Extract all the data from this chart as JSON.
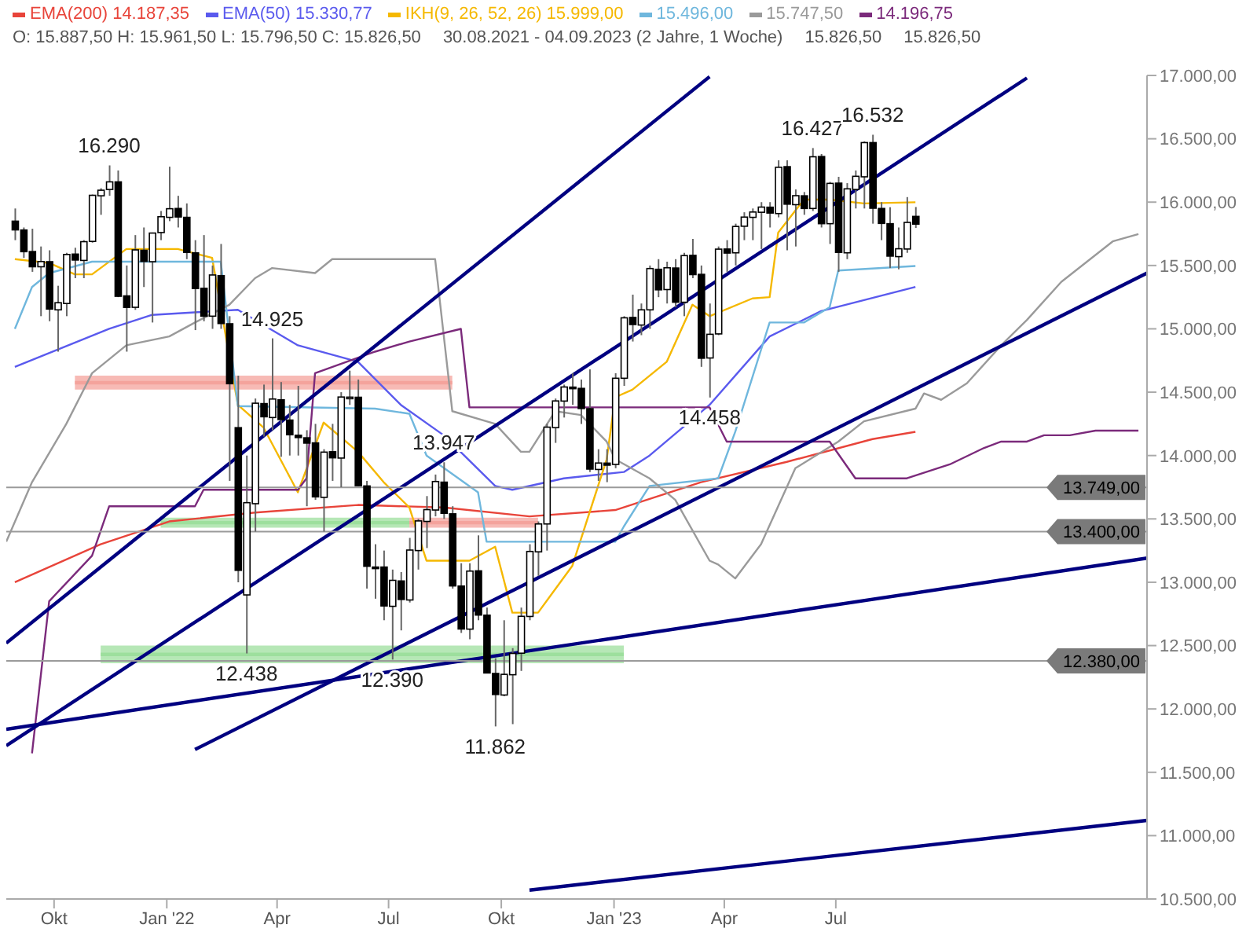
{
  "chart_data": {
    "type": "candlestick",
    "annotations": [
      "O: 15.887,50  H: 15.961,50  L: 15.796,50  C: 15.826,50",
      "30.08.2021 - 04.09.2023  (2 Jahre, 1 Woche)",
      "15.826,50",
      {
        "text": "16.290",
        "x": "2021-11-15",
        "y": 16290
      },
      {
        "text": "14.925",
        "x": "2022-03-28",
        "y": 14925
      },
      {
        "text": "12.438",
        "x": "2022-03-07",
        "y": 12438
      },
      {
        "text": "12.390",
        "x": "2022-07-04",
        "y": 12390
      },
      {
        "text": "13.947",
        "x": "2022-08-15",
        "y": 13947
      },
      {
        "text": "11.862",
        "x": "2022-09-26",
        "y": 11862
      },
      {
        "text": "14.458",
        "x": "2023-03-20",
        "y": 14458
      },
      {
        "text": "16.427",
        "x": "2023-06-12",
        "y": 16427
      },
      {
        "text": "16.532",
        "x": "2023-07-31",
        "y": 16532
      },
      "15.826,50"
    ],
    "legend": "top left",
    "x": [
      "2021-08-30",
      "2021-09-06",
      "2021-09-13",
      "2021-09-20",
      "2021-09-27",
      "2021-10-04",
      "2021-10-11",
      "2021-10-18",
      "2021-10-25",
      "2021-11-01",
      "2021-11-08",
      "2021-11-15",
      "2021-11-22",
      "2021-11-29",
      "2021-12-06",
      "2021-12-13",
      "2021-12-20",
      "2021-12-27",
      "2022-01-03",
      "2022-01-10",
      "2022-01-17",
      "2022-01-24",
      "2022-01-31",
      "2022-02-07",
      "2022-02-14",
      "2022-02-21",
      "2022-02-28",
      "2022-03-07",
      "2022-03-14",
      "2022-03-21",
      "2022-03-28",
      "2022-04-04",
      "2022-04-11",
      "2022-04-18",
      "2022-04-25",
      "2022-05-02",
      "2022-05-09",
      "2022-05-16",
      "2022-05-23",
      "2022-05-30",
      "2022-06-06",
      "2022-06-13",
      "2022-06-20",
      "2022-06-27",
      "2022-07-04",
      "2022-07-11",
      "2022-07-18",
      "2022-07-25",
      "2022-08-01",
      "2022-08-08",
      "2022-08-15",
      "2022-08-22",
      "2022-08-29",
      "2022-09-05",
      "2022-09-12",
      "2022-09-19",
      "2022-09-26",
      "2022-10-03",
      "2022-10-10",
      "2022-10-17",
      "2022-10-24",
      "2022-10-31",
      "2022-11-07",
      "2022-11-14",
      "2022-11-21",
      "2022-11-28",
      "2022-12-05",
      "2022-12-12",
      "2022-12-19",
      "2022-12-26",
      "2023-01-02",
      "2023-01-09",
      "2023-01-16",
      "2023-01-23",
      "2023-01-30",
      "2023-02-06",
      "2023-02-13",
      "2023-02-20",
      "2023-02-27",
      "2023-03-06",
      "2023-03-13",
      "2023-03-20",
      "2023-03-27",
      "2023-04-03",
      "2023-04-10",
      "2023-04-17",
      "2023-04-24",
      "2023-05-01",
      "2023-05-08",
      "2023-05-15",
      "2023-05-22",
      "2023-05-29",
      "2023-06-05",
      "2023-06-12",
      "2023-06-19",
      "2023-06-26",
      "2023-07-03",
      "2023-07-10",
      "2023-07-17",
      "2023-07-24",
      "2023-07-31",
      "2023-08-07",
      "2023-08-14",
      "2023-08-21",
      "2023-08-28",
      "2023-09-04"
    ],
    "ohlc": [
      [
        15850,
        15950,
        15700,
        15781
      ],
      [
        15780,
        15800,
        15560,
        15609
      ],
      [
        15610,
        15790,
        15450,
        15490
      ],
      [
        15490,
        15650,
        15100,
        15531
      ],
      [
        15530,
        15620,
        15060,
        15156
      ],
      [
        15150,
        15340,
        14820,
        15206
      ],
      [
        15200,
        15600,
        15100,
        15587
      ],
      [
        15590,
        15640,
        15400,
        15543
      ],
      [
        15540,
        15700,
        15400,
        15688
      ],
      [
        15690,
        16060,
        15680,
        16054
      ],
      [
        16050,
        16110,
        15900,
        16094
      ],
      [
        16100,
        16290,
        16050,
        16160
      ],
      [
        16160,
        16250,
        15250,
        15257
      ],
      [
        15260,
        15500,
        14820,
        15169
      ],
      [
        15170,
        15740,
        15150,
        15623
      ],
      [
        15620,
        15800,
        15330,
        15532
      ],
      [
        15530,
        15760,
        15050,
        15756
      ],
      [
        15760,
        15930,
        15700,
        15885
      ],
      [
        15880,
        16280,
        15850,
        15948
      ],
      [
        15950,
        16050,
        15800,
        15883
      ],
      [
        15880,
        15990,
        15550,
        15603
      ],
      [
        15600,
        15700,
        14990,
        15318
      ],
      [
        15320,
        15740,
        15060,
        15100
      ],
      [
        15100,
        15500,
        15000,
        15425
      ],
      [
        15420,
        15670,
        15000,
        15042
      ],
      [
        15040,
        15100,
        13800,
        14567
      ],
      [
        14220,
        14630,
        13000,
        13094
      ],
      [
        12900,
        14000,
        12438,
        13628
      ],
      [
        13620,
        14450,
        13400,
        14413
      ],
      [
        14410,
        14560,
        14150,
        14306
      ],
      [
        14300,
        14925,
        14200,
        14446
      ],
      [
        14440,
        14580,
        13990,
        14284
      ],
      [
        14280,
        14400,
        14000,
        14164
      ],
      [
        14160,
        14550,
        14000,
        14142
      ],
      [
        14140,
        14200,
        13600,
        14098
      ],
      [
        14100,
        14250,
        13650,
        13674
      ],
      [
        13670,
        14050,
        13400,
        14027
      ],
      [
        14030,
        14250,
        13800,
        13982
      ],
      [
        13980,
        14500,
        13750,
        14462
      ],
      [
        14460,
        14670,
        14400,
        14461
      ],
      [
        14460,
        14600,
        13760,
        13762
      ],
      [
        13760,
        13800,
        12950,
        13126
      ],
      [
        13120,
        13300,
        12870,
        13118
      ],
      [
        13120,
        13250,
        12700,
        12813
      ],
      [
        12810,
        13100,
        12390,
        13015
      ],
      [
        13010,
        13080,
        12620,
        12864
      ],
      [
        12860,
        13350,
        12840,
        13254
      ],
      [
        13250,
        13500,
        13100,
        13484
      ],
      [
        13480,
        13680,
        13270,
        13573
      ],
      [
        13570,
        13850,
        13520,
        13795
      ],
      [
        13790,
        13947,
        13500,
        13544
      ],
      [
        13540,
        13600,
        12950,
        12971
      ],
      [
        12970,
        13150,
        12600,
        12631
      ],
      [
        12630,
        13150,
        12550,
        13088
      ],
      [
        13090,
        13370,
        12700,
        12741
      ],
      [
        12740,
        12800,
        12280,
        12284
      ],
      [
        12280,
        12400,
        11862,
        12114
      ],
      [
        12110,
        12700,
        12100,
        12273
      ],
      [
        12270,
        12480,
        11880,
        12438
      ],
      [
        12440,
        12800,
        12300,
        12731
      ],
      [
        12730,
        13300,
        12700,
        13243
      ],
      [
        13240,
        13480,
        13050,
        13460
      ],
      [
        13460,
        14250,
        13250,
        14224
      ],
      [
        14220,
        14450,
        14100,
        14431
      ],
      [
        14430,
        14560,
        14300,
        14541
      ],
      [
        14540,
        14650,
        14400,
        14529
      ],
      [
        14530,
        14600,
        14250,
        14371
      ],
      [
        14370,
        14680,
        13870,
        13893
      ],
      [
        13890,
        14050,
        13800,
        13941
      ],
      [
        13940,
        14050,
        13790,
        13924
      ],
      [
        13930,
        14650,
        13900,
        14610
      ],
      [
        14610,
        15100,
        14550,
        15087
      ],
      [
        15090,
        15270,
        14900,
        15034
      ],
      [
        15030,
        15200,
        14950,
        15150
      ],
      [
        15150,
        15500,
        15000,
        15476
      ],
      [
        15470,
        15550,
        15250,
        15308
      ],
      [
        15310,
        15530,
        15200,
        15482
      ],
      [
        15480,
        15550,
        15170,
        15210
      ],
      [
        15210,
        15600,
        15100,
        15578
      ],
      [
        15580,
        15710,
        15400,
        15428
      ],
      [
        15430,
        15500,
        14700,
        14768
      ],
      [
        14770,
        15200,
        14458,
        14957
      ],
      [
        14960,
        15650,
        14950,
        15629
      ],
      [
        15630,
        15700,
        15450,
        15598
      ],
      [
        15600,
        15830,
        15500,
        15808
      ],
      [
        15810,
        15920,
        15700,
        15882
      ],
      [
        15880,
        15950,
        15700,
        15922
      ],
      [
        15920,
        16000,
        15630,
        15961
      ],
      [
        15960,
        16000,
        15800,
        15914
      ],
      [
        15910,
        16330,
        15880,
        16275
      ],
      [
        16280,
        16330,
        15620,
        15984
      ],
      [
        15980,
        16100,
        15650,
        16051
      ],
      [
        16050,
        16080,
        15900,
        15950
      ],
      [
        15950,
        16427,
        15930,
        16358
      ],
      [
        16360,
        16380,
        15800,
        15830
      ],
      [
        15830,
        16160,
        15670,
        16148
      ],
      [
        16150,
        16200,
        15450,
        15603
      ],
      [
        15600,
        16150,
        15550,
        16105
      ],
      [
        16100,
        16250,
        15950,
        16204
      ],
      [
        16200,
        16480,
        15950,
        16470
      ],
      [
        16470,
        16532,
        15830,
        15952
      ],
      [
        15950,
        16000,
        15700,
        15832
      ],
      [
        15830,
        15960,
        15480,
        15574
      ],
      [
        15570,
        15800,
        15470,
        15632
      ],
      [
        15630,
        16040,
        15600,
        15840
      ],
      [
        15887.5,
        15961.5,
        15796.5,
        15826.5
      ]
    ],
    "series": [
      {
        "type": "line",
        "color": "#f4a39c",
        "x": [
          "2021-10-18",
          "2022-08-22"
        ],
        "lower": [
          14520,
          14520
        ],
        "upper": [
          14630,
          14630
        ],
        "values": [
          14575,
          14575
        ]
      },
      {
        "type": "line",
        "color": "#9ddf9d",
        "x": [
          "2021-12-27",
          "2022-07-18"
        ],
        "lower": [
          13430,
          13430
        ],
        "upper": [
          13510,
          13510
        ],
        "values": [
          13470,
          13470
        ]
      },
      {
        "type": "line",
        "color": "#f4a39c",
        "x": [
          "2022-07-18",
          "2022-10-31"
        ],
        "lower": [
          13430,
          13430
        ],
        "upper": [
          13510,
          13510
        ],
        "values": [
          13470,
          13470
        ]
      },
      {
        "type": "line",
        "color": "#9ddf9d",
        "x": [
          "2021-11-08",
          "2023-01-09"
        ],
        "lower": [
          12360,
          12360
        ],
        "upper": [
          12500,
          12500
        ],
        "values": [
          12430,
          12430
        ]
      },
      {
        "type": "line",
        "name": "EMA(200)  14.187,35",
        "color": "#e8443a",
        "x": [
          "2021-08-30",
          "2021-11-08",
          "2022-01-03",
          "2022-03-14",
          "2022-06-06",
          "2022-08-15",
          "2022-10-24",
          "2023-01-02",
          "2023-03-13",
          "2023-05-22",
          "2023-07-31",
          "2023-09-04"
        ],
        "values": [
          13000,
          13300,
          13480,
          13550,
          13610,
          13590,
          13520,
          13570,
          13790,
          13950,
          14130,
          14187.35
        ]
      },
      {
        "type": "line",
        "name": "EMA(50)  15.330,77",
        "color": "#5a5aee",
        "x": [
          "2021-08-30",
          "2021-11-15",
          "2021-12-20",
          "2022-02-07",
          "2022-02-28",
          "2022-04-18",
          "2022-06-06",
          "2022-07-11",
          "2022-08-15",
          "2022-09-26",
          "2022-10-10",
          "2022-11-21",
          "2023-01-09",
          "2023-01-30",
          "2023-03-20",
          "2023-05-08",
          "2023-06-19",
          "2023-09-04"
        ],
        "values": [
          14700,
          15000,
          15110,
          null,
          15150,
          14870,
          14740,
          14400,
          14160,
          13760,
          13730,
          13820,
          13870,
          14000,
          14400,
          14940,
          15140,
          15330.77
        ]
      },
      {
        "type": "line",
        "name": "IKH(9, 26, 52, 26)  15.999,00",
        "color": "#f5b800",
        "x": [
          "2021-08-30",
          "2021-09-27",
          "2021-10-18",
          "2021-11-01",
          "2021-11-29",
          "2022-01-10",
          "2022-02-07",
          "2022-02-28",
          "2022-03-21",
          "2022-04-18",
          "2022-05-09",
          "2022-06-06",
          "2022-06-27",
          "2022-07-18",
          "2022-08-01",
          "2022-09-05",
          "2022-09-26",
          "2022-10-10",
          "2022-10-31",
          "2022-11-28",
          "2022-12-26",
          "2023-01-02",
          "2023-01-16",
          "2023-02-13",
          "2023-03-06",
          "2023-03-20",
          "2023-04-24",
          "2023-05-08",
          "2023-05-15",
          "2023-06-05",
          "2023-06-26",
          "2023-07-03",
          "2023-07-24",
          "2023-09-04"
        ],
        "values": [
          15550,
          15520,
          15430,
          15430,
          15630,
          15630,
          15560,
          14400,
          14220,
          13710,
          14260,
          14030,
          13790,
          13590,
          13170,
          13170,
          13280,
          12760,
          12760,
          13130,
          13970,
          14460,
          14520,
          14740,
          15190,
          15100,
          15240,
          15250,
          15760,
          16020,
          16020,
          null,
          15990,
          15999
        ]
      },
      {
        "type": "line",
        "name": "15.496,00",
        "color": "#6fb7dd",
        "x": [
          "2021-08-30",
          "2021-09-13",
          "2021-09-27",
          "2021-11-01",
          "2022-02-14",
          "2022-02-28",
          "2022-06-20",
          "2022-07-18",
          "2022-08-01",
          "2022-09-12",
          "2022-09-19",
          "2023-01-02",
          "2023-01-09",
          "2023-01-30",
          "2023-03-27",
          "2023-04-10",
          "2023-05-08",
          "2023-06-05",
          "2023-06-26",
          "2023-07-03",
          "2023-09-04"
        ],
        "values": [
          15000,
          15330,
          15440,
          15530,
          15530,
          14390,
          14370,
          14330,
          14000,
          13710,
          13320,
          13320,
          13440,
          13760,
          13820,
          14190,
          15050,
          15050,
          15170,
          15460,
          15496
        ]
      },
      {
        "type": "line",
        "name": "15.747,50",
        "color": "#9a9a9a",
        "x": [
          "2021-08-23",
          "2021-09-13",
          "2021-10-11",
          "2021-11-01",
          "2021-11-29",
          "2022-01-03",
          "2022-01-24",
          "2022-02-21",
          "2022-03-14",
          "2022-03-28",
          "2022-05-02",
          "2022-05-16",
          "2022-08-08",
          "2022-08-22",
          "2022-09-26",
          "2022-10-17",
          "2022-10-24",
          "2022-11-14",
          "2022-12-05",
          "2022-12-26",
          "2023-01-02",
          "2023-01-30",
          "2023-02-20",
          "2023-03-20",
          "2023-03-27",
          "2023-04-10",
          "2023-05-01",
          "2023-05-29",
          "2023-07-03",
          "2023-07-24",
          "2023-09-04",
          "2023-09-11",
          "2023-09-25",
          "2023-10-16",
          "2023-11-13",
          "2023-12-04",
          "2024-01-01",
          "2024-01-22",
          "2024-02-12",
          "2024-03-04"
        ],
        "values": [
          13320,
          13790,
          14250,
          14650,
          14870,
          14940,
          15050,
          15190,
          15400,
          15480,
          15440,
          15550,
          15550,
          14350,
          14250,
          14030,
          14030,
          14350,
          14320,
          14110,
          13970,
          13820,
          13650,
          13170,
          13140,
          13030,
          13300,
          13900,
          14110,
          14270,
          14370,
          14490,
          14440,
          14570,
          14870,
          15070,
          15370,
          15530,
          15690,
          15747.5
        ]
      },
      {
        "type": "line",
        "name": "14.196,75",
        "color": "#7b2a7b",
        "x": [
          "2021-09-13",
          "2021-09-27",
          "2021-11-01",
          "2021-11-15",
          "2022-01-24",
          "2022-01-31",
          "2022-04-18",
          "2022-04-25",
          "2022-05-02",
          "2022-06-20",
          "2022-07-18",
          "2022-08-29",
          "2022-09-05",
          "2023-03-20",
          "2023-04-03",
          "2023-06-26",
          "2023-07-17",
          "2023-08-28",
          "2023-10-02",
          "2023-10-30",
          "2023-11-13",
          "2023-12-04",
          "2023-12-18",
          "2024-01-08",
          "2024-01-29",
          "2024-03-04"
        ],
        "values": [
          11650,
          12850,
          13210,
          13600,
          13600,
          13730,
          13730,
          13820,
          14650,
          14820,
          14900,
          15000,
          14380,
          14380,
          14110,
          14110,
          13820,
          13820,
          13930,
          14060,
          14110,
          14110,
          14160,
          14160,
          14196.75,
          14196.75
        ]
      },
      {
        "type": "line",
        "color": "#000080",
        "x": [
          "2021-08-23",
          "2023-03-20"
        ],
        "values": [
          12520,
          16990
        ]
      },
      {
        "type": "line",
        "color": "#000080",
        "x": [
          "2021-08-23",
          "2023-12-04"
        ],
        "values": [
          11710,
          16980
        ]
      },
      {
        "type": "line",
        "color": "#000080",
        "x": [
          "2022-01-24",
          "2024-03-11"
        ],
        "values": [
          11680,
          15440
        ]
      },
      {
        "type": "line",
        "color": "#000080",
        "x": [
          "2021-08-23",
          "2024-03-11"
        ],
        "values": [
          11840,
          13190
        ]
      },
      {
        "type": "line",
        "color": "#000080",
        "x": [
          "2022-10-24",
          "2024-03-11"
        ],
        "values": [
          10570,
          11120
        ]
      }
    ],
    "ref_lines": [
      {
        "axis": "y",
        "value": 13749,
        "label": "13.749,00",
        "color": "#9a9a9a"
      },
      {
        "axis": "y",
        "value": 13400,
        "label": "13.400,00",
        "color": "#9a9a9a"
      },
      {
        "axis": "y",
        "value": 12380,
        "label": "12.380,00",
        "color": "#9a9a9a"
      }
    ],
    "xlim": [
      "2021-08-23",
      "2024-03-11"
    ],
    "xticks": [
      {
        "value": "2021-10-01",
        "label": "Okt"
      },
      {
        "value": "2022-01-01",
        "label": "Jan '22"
      },
      {
        "value": "2022-04-01",
        "label": "Apr"
      },
      {
        "value": "2022-07-01",
        "label": "Jul"
      },
      {
        "value": "2022-10-01",
        "label": "Okt"
      },
      {
        "value": "2023-01-01",
        "label": "Jan '23"
      },
      {
        "value": "2023-04-01",
        "label": "Apr"
      },
      {
        "value": "2023-07-01",
        "label": "Jul"
      }
    ],
    "ylim": [
      10500,
      17000
    ],
    "yticks": [
      {
        "value": 10500,
        "label": "10.500,00"
      },
      {
        "value": 11000,
        "label": "11.000,00"
      },
      {
        "value": 11500,
        "label": "11.500,00"
      },
      {
        "value": 12000,
        "label": "12.000,00"
      },
      {
        "value": 12500,
        "label": "12.500,00"
      },
      {
        "value": 13000,
        "label": "13.000,00"
      },
      {
        "value": 13500,
        "label": "13.500,00"
      },
      {
        "value": 14000,
        "label": "14.000,00"
      },
      {
        "value": 14500,
        "label": "14.500,00"
      },
      {
        "value": 15000,
        "label": "15.000,00"
      },
      {
        "value": 15500,
        "label": "15.500,00"
      },
      {
        "value": 16000,
        "label": "16.000,00"
      },
      {
        "value": 16500,
        "label": "16.500,00"
      },
      {
        "value": 17000,
        "label": "17.000,00"
      }
    ]
  }
}
